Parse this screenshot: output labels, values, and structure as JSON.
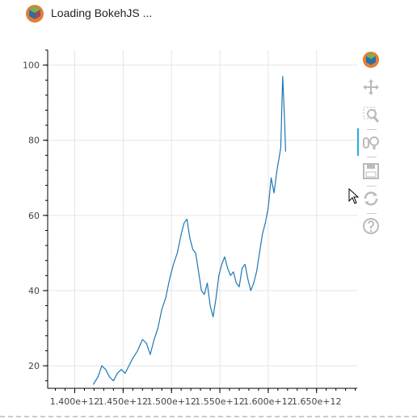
{
  "header": {
    "loading_text": "Loading BokehJS ...",
    "logo_icon": "bokeh-logo-icon"
  },
  "toolbar": {
    "items": [
      {
        "name": "bokeh-logo-icon"
      },
      {
        "name": "pan-icon"
      },
      {
        "name": "box-zoom-icon"
      },
      {
        "name": "wheel-zoom-icon",
        "active": true
      },
      {
        "name": "save-icon"
      },
      {
        "name": "reset-icon"
      },
      {
        "name": "help-icon"
      }
    ]
  },
  "chart_data": {
    "type": "line",
    "title": "",
    "xlabel": "",
    "ylabel": "",
    "xlim": [
      1372000000000.0,
      1692000000000.0
    ],
    "ylim": [
      14,
      104
    ],
    "x_ticks": [
      1400000000000.0,
      1450000000000.0,
      1500000000000.0,
      1550000000000.0,
      1600000000000.0,
      1650000000000.0
    ],
    "x_tick_labels": [
      "1.400e+12",
      "1.450e+12",
      "1.500e+12",
      "1.550e+12",
      "1.600e+12",
      "1.650e+12"
    ],
    "y_ticks": [
      20,
      40,
      60,
      80,
      100
    ],
    "y_tick_labels": [
      "20",
      "40",
      "60",
      "80",
      "100"
    ],
    "grid": true,
    "line_color": "#1f77b4",
    "series": [
      {
        "x": [
          1419000000000.0,
          1424000000000.0,
          1428000000000.0,
          1432000000000.0,
          1436000000000.0,
          1440000000000.0,
          1444000000000.0,
          1448000000000.0,
          1452000000000.0,
          1456000000000.0,
          1460000000000.0,
          1465000000000.0,
          1470000000000.0,
          1474000000000.0,
          1478000000000.0,
          1482000000000.0,
          1486000000000.0,
          1490000000000.0,
          1494000000000.0,
          1498000000000.0,
          1502000000000.0,
          1506000000000.0,
          1510000000000.0,
          1513000000000.0,
          1516000000000.0,
          1519000000000.0,
          1522000000000.0,
          1525000000000.0,
          1528000000000.0,
          1531000000000.0,
          1534000000000.0,
          1537000000000.0,
          1540000000000.0,
          1543000000000.0,
          1546000000000.0,
          1549000000000.0,
          1552000000000.0,
          1555000000000.0,
          1558000000000.0,
          1561000000000.0,
          1564000000000.0,
          1567000000000.0,
          1570000000000.0,
          1573000000000.0,
          1576000000000.0,
          1579000000000.0,
          1582000000000.0,
          1585000000000.0,
          1588000000000.0,
          1591000000000.0,
          1594000000000.0,
          1597000000000.0,
          1600000000000.0,
          1603000000000.0,
          1606000000000.0,
          1609000000000.0,
          1611000000000.0,
          1613000000000.0,
          1615000000000.0,
          1617000000000.0,
          1618000000000.0
        ],
        "y": [
          15,
          17,
          20,
          19,
          17,
          16,
          18,
          19,
          18,
          20,
          22,
          24,
          27,
          26,
          23,
          27,
          30,
          35,
          38,
          43,
          47,
          50,
          55,
          58,
          59,
          54,
          51,
          50,
          45,
          40,
          39,
          42,
          36,
          33,
          38,
          44,
          47,
          49,
          46,
          44,
          45,
          42,
          41,
          46,
          47,
          43,
          40,
          42,
          45,
          50,
          55,
          58,
          62,
          70,
          66,
          72,
          75,
          78,
          97,
          85,
          77
        ]
      }
    ]
  }
}
